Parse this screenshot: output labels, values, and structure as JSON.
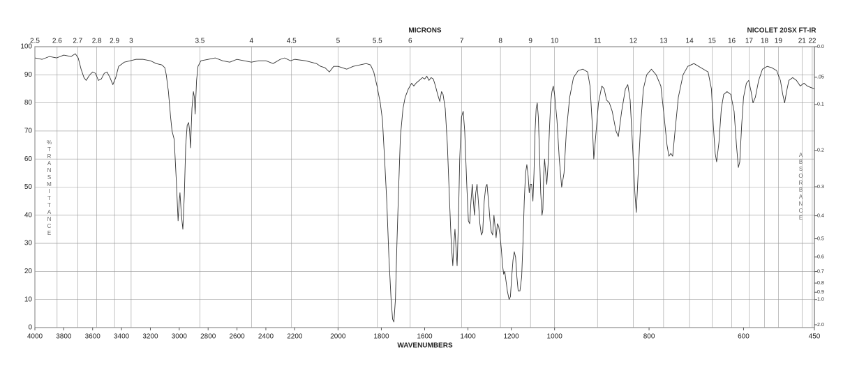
{
  "chart_data": {
    "type": "line",
    "title": "NICOLET 20SX FT-IR",
    "x_label": "WAVENUMBERS",
    "x2_label": "MICRONS",
    "y_label": "%TRANSMITTANCE",
    "y2_label": "ABSORBANCE",
    "xlim": [
      4000,
      450
    ],
    "xbreaks": [
      2200,
      1000
    ],
    "xticks": [
      4000,
      3800,
      3600,
      3400,
      3200,
      3000,
      2800,
      2600,
      2400,
      2200,
      2000,
      1800,
      1600,
      1400,
      1200,
      1000,
      800,
      600,
      450
    ],
    "x2ticks": [
      2.5,
      2.6,
      2.7,
      2.8,
      2.9,
      3,
      3.5,
      4,
      4.5,
      5,
      5.5,
      6,
      7,
      8,
      9,
      10,
      11,
      12,
      13,
      14,
      15,
      16,
      17,
      18,
      19,
      21,
      22
    ],
    "ylim": [
      0,
      100
    ],
    "yticks": [
      0,
      10,
      20,
      30,
      40,
      50,
      60,
      70,
      80,
      90,
      100
    ],
    "y2ticks": [
      {
        "value": 0,
        "label": "0.0"
      },
      {
        "value": 0.05,
        "label": ".05"
      },
      0.1,
      0.2,
      0.3,
      0.4,
      0.5,
      0.6,
      0.7,
      0.8,
      0.9,
      {
        "value": 1,
        "label": "1.0"
      },
      {
        "value": 2,
        "label": "2.0"
      }
    ],
    "grid": true,
    "color": "#333333",
    "x": [
      4000,
      3950,
      3900,
      3850,
      3800,
      3750,
      3720,
      3700,
      3680,
      3660,
      3645,
      3620,
      3600,
      3580,
      3560,
      3540,
      3520,
      3500,
      3480,
      3460,
      3440,
      3420,
      3380,
      3340,
      3300,
      3250,
      3200,
      3160,
      3120,
      3100,
      3090,
      3075,
      3060,
      3050,
      3035,
      3020,
      3008,
      3000,
      2995,
      2985,
      2975,
      2965,
      2955,
      2945,
      2935,
      2928,
      2922,
      2912,
      2902,
      2895,
      2890,
      2880,
      2870,
      2850,
      2800,
      2750,
      2700,
      2650,
      2600,
      2550,
      2500,
      2450,
      2400,
      2350,
      2300,
      2270,
      2230,
      2200,
      2150,
      2100,
      2080,
      2060,
      2040,
      2020,
      2000,
      1980,
      1960,
      1930,
      1900,
      1870,
      1850,
      1835,
      1820,
      1805,
      1795,
      1785,
      1775,
      1765,
      1755,
      1748,
      1742,
      1735,
      1728,
      1720,
      1712,
      1700,
      1690,
      1675,
      1660,
      1650,
      1640,
      1625,
      1610,
      1600,
      1590,
      1580,
      1570,
      1560,
      1550,
      1540,
      1530,
      1522,
      1515,
      1505,
      1495,
      1485,
      1477,
      1470,
      1465,
      1460,
      1455,
      1450,
      1445,
      1438,
      1430,
      1422,
      1415,
      1405,
      1398,
      1392,
      1386,
      1380,
      1375,
      1370,
      1364,
      1358,
      1352,
      1345,
      1338,
      1332,
      1325,
      1318,
      1312,
      1305,
      1298,
      1292,
      1286,
      1280,
      1275,
      1270,
      1264,
      1258,
      1252,
      1246,
      1240,
      1235,
      1230,
      1225,
      1218,
      1210,
      1204,
      1198,
      1192,
      1186,
      1180,
      1174,
      1168,
      1160,
      1152,
      1146,
      1140,
      1134,
      1128,
      1122,
      1117,
      1112,
      1106,
      1100,
      1095,
      1090,
      1085,
      1080,
      1075,
      1070,
      1064,
      1058,
      1054,
      1050,
      1046,
      1042,
      1036,
      1030,
      1024,
      1018,
      1012,
      1006,
      1000,
      995,
      990,
      985,
      980,
      975,
      968,
      960,
      950,
      940,
      930,
      925,
      920,
      917,
      913,
      907,
      900,
      895,
      890,
      884,
      878,
      870,
      865,
      858,
      850,
      845,
      840,
      835,
      830,
      827,
      823,
      818,
      812,
      805,
      795,
      785,
      775,
      768,
      762,
      758,
      754,
      750,
      745,
      738,
      728,
      718,
      705,
      690,
      675,
      668,
      664,
      660,
      657,
      652,
      647,
      642,
      635,
      627,
      620,
      615,
      611,
      608,
      604,
      600,
      594,
      589,
      584,
      580,
      575,
      568,
      560,
      550,
      540,
      530,
      522,
      517,
      513,
      509,
      504,
      496,
      488,
      480,
      472,
      465,
      458,
      450
    ],
    "values": [
      96,
      95.5,
      96.5,
      96,
      97,
      96.5,
      97.5,
      96,
      92,
      89,
      88,
      90,
      91,
      90.5,
      88,
      88.5,
      90.5,
      91,
      89,
      86.5,
      89,
      93,
      94.5,
      95,
      95.5,
      95.5,
      95,
      94,
      93.5,
      92.5,
      90,
      84,
      75,
      70,
      67,
      52,
      38,
      45,
      48,
      40,
      35,
      47,
      65,
      72,
      73,
      70,
      64,
      78,
      84,
      82,
      76,
      88,
      93,
      95,
      95.5,
      96,
      95,
      94.5,
      95.5,
      95,
      94.5,
      95,
      95,
      94,
      95.5,
      96,
      95,
      95.5,
      95,
      94,
      93,
      92.5,
      91,
      93,
      93,
      92.5,
      92,
      93,
      93.5,
      94,
      93.5,
      91,
      86,
      80,
      74,
      60,
      45,
      25,
      10,
      3,
      2,
      10,
      30,
      50,
      68,
      78,
      82,
      85,
      87,
      86,
      87,
      88,
      89,
      88.5,
      89.5,
      88,
      89,
      88.5,
      86,
      83,
      80.5,
      84,
      83,
      78,
      65,
      45,
      30,
      22,
      30,
      35,
      28,
      22,
      35,
      60,
      75,
      77,
      70,
      50,
      38,
      37,
      45,
      51,
      45,
      40,
      48,
      51,
      45,
      37,
      33,
      34,
      45,
      50,
      51,
      45,
      38,
      34,
      33,
      40,
      36,
      32,
      37,
      36,
      33,
      28,
      22,
      19,
      20,
      17,
      13,
      10,
      11,
      18,
      24,
      27,
      25,
      18,
      13,
      13,
      18,
      30,
      45,
      55,
      58,
      54,
      48,
      51,
      51,
      45,
      55,
      70,
      78,
      80,
      75,
      63,
      48,
      40,
      42,
      55,
      60,
      56,
      51,
      58,
      70,
      80,
      84,
      86,
      83,
      74,
      60,
      50,
      55,
      70,
      82,
      89,
      91.5,
      92,
      91,
      86,
      72,
      60,
      68,
      80,
      86,
      85,
      81,
      80,
      77,
      70,
      68,
      77,
      85,
      86.5,
      81,
      65,
      48,
      41,
      55,
      72,
      85,
      90,
      92,
      90,
      86,
      75,
      65,
      61,
      62,
      61,
      70,
      82,
      90,
      93,
      94,
      92.5,
      91,
      85,
      72,
      62,
      59,
      66,
      78,
      83,
      84,
      83,
      77,
      65,
      57,
      59,
      72,
      82,
      87,
      88,
      84,
      80,
      82,
      88,
      92,
      93,
      92.5,
      91.5,
      88,
      83,
      80,
      84,
      88,
      89,
      88,
      86,
      87,
      86,
      85.5,
      85
    ]
  }
}
